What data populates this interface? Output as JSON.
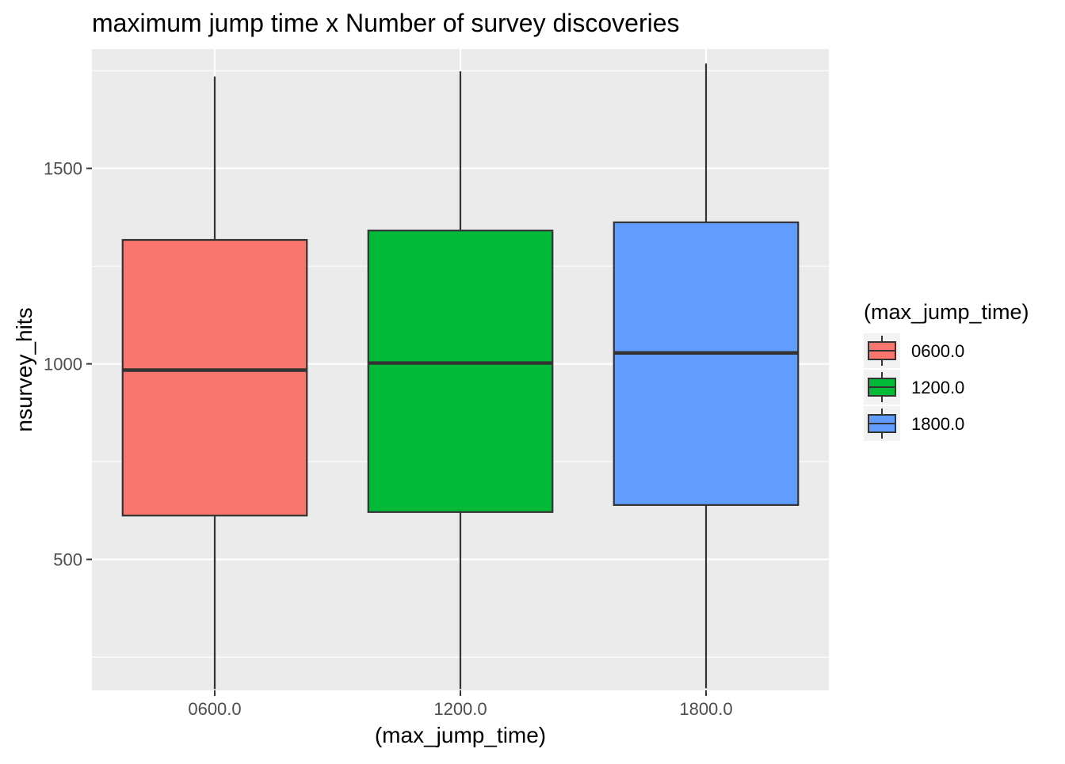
{
  "chart_data": {
    "type": "boxplot",
    "title": "maximum jump time x Number of survey discoveries",
    "xlabel": "(max_jump_time)",
    "ylabel": "nsurvey_hits",
    "categories": [
      "0600.0",
      "1200.0",
      "1800.0"
    ],
    "yticks": [
      500,
      1000,
      1500
    ],
    "ylim": [
      165,
      1805
    ],
    "grid": true,
    "legend": {
      "title": "(max_jump_time)",
      "position": "right",
      "entries": [
        "0600.0",
        "1200.0",
        "1800.0"
      ]
    },
    "series": [
      {
        "category": "0600.0",
        "color": "#F8766D",
        "min": 168,
        "q1": 612,
        "median": 984,
        "q3": 1317,
        "max": 1735
      },
      {
        "category": "1200.0",
        "color": "#00BA38",
        "min": 168,
        "q1": 621,
        "median": 1002,
        "q3": 1341,
        "max": 1748
      },
      {
        "category": "1800.0",
        "color": "#619CFF",
        "min": 170,
        "q1": 639,
        "median": 1028,
        "q3": 1362,
        "max": 1768
      }
    ]
  }
}
